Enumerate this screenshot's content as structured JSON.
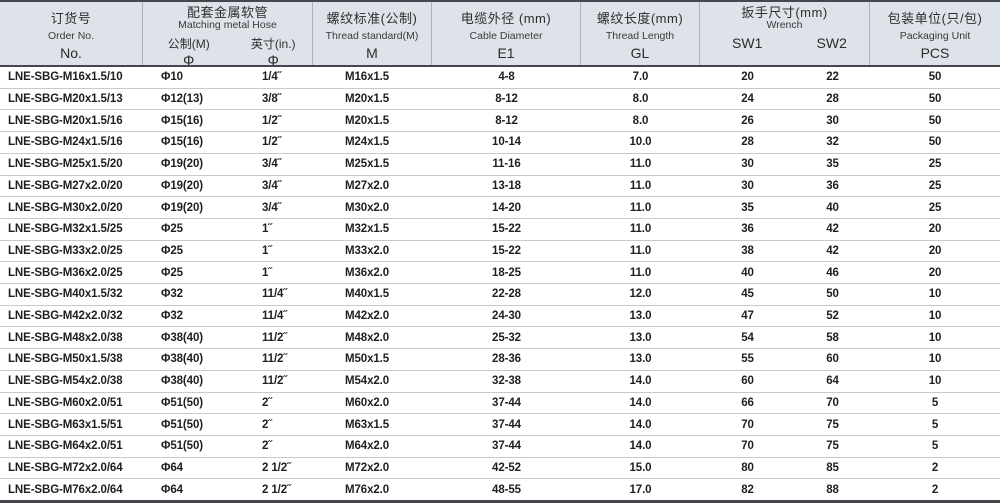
{
  "colors": {
    "header_bg": "#dee3e9",
    "border_dark": "#44484d",
    "row_separator": "#c9c9c9",
    "header_separator": "#aab1b8",
    "text": "#1f1f1f"
  },
  "table": {
    "header": {
      "order_no": {
        "zh": "订货号",
        "en": "Order No.",
        "code": "No."
      },
      "hose": {
        "zh": "配套金属软管",
        "en": "Matching metal Hose",
        "metric": {
          "label": "公制(M)",
          "code": "Φ"
        },
        "inch": {
          "label": "英寸(in.)",
          "code": "Φ"
        }
      },
      "thread_standard": {
        "zh": "螺纹标准(公制)",
        "en": "Thread standard(M)",
        "code": "M"
      },
      "cable_diameter": {
        "zh": "电缆外径 (mm)",
        "en": "Cable Diameter",
        "code": "E1"
      },
      "thread_length": {
        "zh": "螺纹长度(mm)",
        "en": "Thread Length",
        "code": "GL"
      },
      "wrench": {
        "zh": "扳手尺寸(mm)",
        "en": "Wrench",
        "sw1": "SW1",
        "sw2": "SW2"
      },
      "packaging": {
        "zh": "包装单位(只/包)",
        "en": "Packaging Unit",
        "code": "PCS"
      }
    },
    "column_keys": [
      "order-no",
      "hose-metric",
      "hose-inch",
      "thread-standard",
      "cable-diameter-e1",
      "thread-length-gl",
      "sw1",
      "sw2",
      "pcs"
    ],
    "rows": [
      [
        "LNE-SBG-M16x1.5/10",
        "Φ10",
        "1/4˝",
        "M16x1.5",
        "4-8",
        "7.0",
        "20",
        "22",
        "50"
      ],
      [
        "LNE-SBG-M20x1.5/13",
        "Φ12(13)",
        "3/8˝",
        "M20x1.5",
        "8-12",
        "8.0",
        "24",
        "28",
        "50"
      ],
      [
        "LNE-SBG-M20x1.5/16",
        "Φ15(16)",
        "1/2˝",
        "M20x1.5",
        "8-12",
        "8.0",
        "26",
        "30",
        "50"
      ],
      [
        "LNE-SBG-M24x1.5/16",
        "Φ15(16)",
        "1/2˝",
        "M24x1.5",
        "10-14",
        "10.0",
        "28",
        "32",
        "50"
      ],
      [
        "LNE-SBG-M25x1.5/20",
        "Φ19(20)",
        "3/4˝",
        "M25x1.5",
        "11-16",
        "11.0",
        "30",
        "35",
        "25"
      ],
      [
        "LNE-SBG-M27x2.0/20",
        "Φ19(20)",
        "3/4˝",
        "M27x2.0",
        "13-18",
        "11.0",
        "30",
        "36",
        "25"
      ],
      [
        "LNE-SBG-M30x2.0/20",
        "Φ19(20)",
        "3/4˝",
        "M30x2.0",
        "14-20",
        "11.0",
        "35",
        "40",
        "25"
      ],
      [
        "LNE-SBG-M32x1.5/25",
        "Φ25",
        "1˝",
        "M32x1.5",
        "15-22",
        "11.0",
        "36",
        "42",
        "20"
      ],
      [
        "LNE-SBG-M33x2.0/25",
        "Φ25",
        "1˝",
        "M33x2.0",
        "15-22",
        "11.0",
        "38",
        "42",
        "20"
      ],
      [
        "LNE-SBG-M36x2.0/25",
        "Φ25",
        "1˝",
        "M36x2.0",
        "18-25",
        "11.0",
        "40",
        "46",
        "20"
      ],
      [
        "LNE-SBG-M40x1.5/32",
        "Φ32",
        "11/4˝",
        "M40x1.5",
        "22-28",
        "12.0",
        "45",
        "50",
        "10"
      ],
      [
        "LNE-SBG-M42x2.0/32",
        "Φ32",
        "11/4˝",
        "M42x2.0",
        "24-30",
        "13.0",
        "47",
        "52",
        "10"
      ],
      [
        "LNE-SBG-M48x2.0/38",
        "Φ38(40)",
        "11/2˝",
        "M48x2.0",
        "25-32",
        "13.0",
        "54",
        "58",
        "10"
      ],
      [
        "LNE-SBG-M50x1.5/38",
        "Φ38(40)",
        "11/2˝",
        "M50x1.5",
        "28-36",
        "13.0",
        "55",
        "60",
        "10"
      ],
      [
        "LNE-SBG-M54x2.0/38",
        "Φ38(40)",
        "11/2˝",
        "M54x2.0",
        "32-38",
        "14.0",
        "60",
        "64",
        "10"
      ],
      [
        "LNE-SBG-M60x2.0/51",
        "Φ51(50)",
        "2˝",
        "M60x2.0",
        "37-44",
        "14.0",
        "66",
        "70",
        "5"
      ],
      [
        "LNE-SBG-M63x1.5/51",
        "Φ51(50)",
        "2˝",
        "M63x1.5",
        "37-44",
        "14.0",
        "70",
        "75",
        "5"
      ],
      [
        "LNE-SBG-M64x2.0/51",
        "Φ51(50)",
        "2˝",
        "M64x2.0",
        "37-44",
        "14.0",
        "70",
        "75",
        "5"
      ],
      [
        "LNE-SBG-M72x2.0/64",
        "Φ64",
        "2 1/2˝",
        "M72x2.0",
        "42-52",
        "15.0",
        "80",
        "85",
        "2"
      ],
      [
        "LNE-SBG-M76x2.0/64",
        "Φ64",
        "2 1/2˝",
        "M76x2.0",
        "48-55",
        "17.0",
        "82",
        "88",
        "2"
      ]
    ]
  }
}
